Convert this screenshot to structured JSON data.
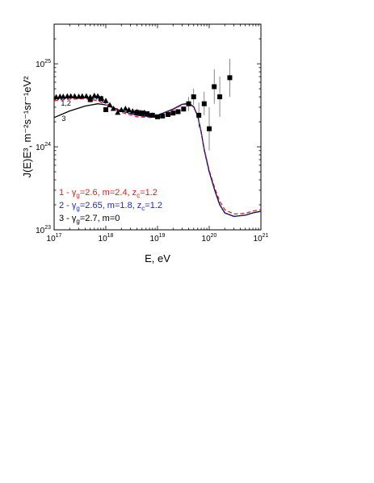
{
  "chart_data": {
    "type": "line",
    "xlabel": "E, eV",
    "ylabel": "J(E)E³, m⁻²s⁻¹sr⁻¹eV²",
    "xscale": "log",
    "yscale": "log",
    "xlim": [
      1e+17,
      1e+21
    ],
    "ylim": [
      1e+23,
      3e+25
    ],
    "x_tick_labels": [
      {
        "base": "10",
        "exp": "17",
        "value": 1e+17
      },
      {
        "base": "10",
        "exp": "18",
        "value": 1e+18
      },
      {
        "base": "10",
        "exp": "19",
        "value": 1e+19
      },
      {
        "base": "10",
        "exp": "20",
        "value": 1e+20
      },
      {
        "base": "10",
        "exp": "21",
        "value": 1e+21
      }
    ],
    "y_tick_labels": [
      {
        "base": "10",
        "exp": "23",
        "value": 1e+23
      },
      {
        "base": "10",
        "exp": "24",
        "value": 1e+24
      },
      {
        "base": "10",
        "exp": "25",
        "value": 1e+25
      }
    ],
    "grid": false,
    "legend_placement": "lower-left",
    "series": [
      {
        "name": "1 - γg=2.6, m=2.4, zc=1.2",
        "label_main": "1 - γ",
        "label_sub": "g",
        "label_rest": "=2.6, m=2.4, z",
        "label_sub2": "c",
        "label_end": "=1.2",
        "color": "#e0201b",
        "dash": "5,3",
        "x": [
          1e+17,
          2e+17,
          4e+17,
          7e+17,
          1e+18,
          2e+18,
          4e+18,
          8e+18,
          1e+19,
          2e+19,
          3e+19,
          4e+19,
          5e+19,
          6e+19,
          7e+19,
          8e+19,
          1e+20,
          1.3e+20,
          1.6e+20,
          2e+20,
          3e+20,
          5e+20,
          7e+20,
          1e+21
        ],
        "y": [
          3.6e+24,
          3.75e+24,
          3.8e+24,
          3.6e+24,
          3.2e+24,
          2.6e+24,
          2.3e+24,
          2.25e+24,
          2.35e+24,
          2.8e+24,
          3.2e+24,
          3.3e+24,
          3e+24,
          2.3e+24,
          1.5e+24,
          9.5e+23,
          5.2e+23,
          3.1e+23,
          2.2e+23,
          1.75e+23,
          1.55e+23,
          1.58e+23,
          1.68e+23,
          1.75e+23
        ]
      },
      {
        "name": "2 - γg=2.65, m=1.8, zc=1.2",
        "label_main": "2 - γ",
        "label_sub": "g",
        "label_rest": "=2.65, m=1.8, z",
        "label_sub2": "c",
        "label_end": "=1.2",
        "color": "#1f1fd6",
        "dash": "2,2",
        "x": [
          1e+17,
          2e+17,
          4e+17,
          7e+17,
          1e+18,
          2e+18,
          4e+18,
          8e+18,
          1e+19,
          2e+19,
          3e+19,
          4e+19,
          5e+19,
          6e+19,
          7e+19,
          8e+19,
          1e+20,
          1.3e+20,
          1.6e+20,
          2e+20,
          3e+20,
          5e+20,
          7e+20,
          1e+21
        ],
        "y": [
          3.7e+24,
          3.85e+24,
          3.95e+24,
          3.75e+24,
          3.35e+24,
          2.7e+24,
          2.4e+24,
          2.3e+24,
          2.4e+24,
          2.85e+24,
          3.25e+24,
          3.35e+24,
          3.05e+24,
          2.35e+24,
          1.5e+24,
          9.2e+23,
          5e+23,
          2.9e+23,
          2e+23,
          1.6e+23,
          1.45e+23,
          1.5e+23,
          1.6e+23,
          1.67e+23
        ]
      },
      {
        "name": "3 - γg=2.7, m=0",
        "label_main": "3 - γ",
        "label_sub": "g",
        "label_rest": "=2.7, m=0",
        "label_sub2": "",
        "label_end": "",
        "color": "#000000",
        "dash": "",
        "x": [
          1e+17,
          2e+17,
          4e+17,
          7e+17,
          1e+18,
          2e+18,
          4e+18,
          8e+18,
          1e+19,
          2e+19,
          3e+19,
          4e+19,
          5e+19,
          6e+19,
          7e+19,
          8e+19,
          1e+20,
          1.3e+20,
          1.6e+20,
          2e+20,
          3e+20,
          5e+20,
          7e+20,
          1e+21
        ],
        "y": [
          2.25e+24,
          2.7e+24,
          3.1e+24,
          3.3e+24,
          3.2e+24,
          2.7e+24,
          2.4e+24,
          2.3e+24,
          2.4e+24,
          2.85e+24,
          3.25e+24,
          3.35e+24,
          3.05e+24,
          2.35e+24,
          1.5e+24,
          9.2e+23,
          5e+23,
          2.9e+23,
          2e+23,
          1.6e+23,
          1.45e+23,
          1.5e+23,
          1.6e+23,
          1.67e+23
        ]
      }
    ],
    "triangle_data": {
      "x": [
        1.1e+17,
        1.3e+17,
        1.5e+17,
        1.8e+17,
        2.1e+17,
        2.5e+17,
        3e+17,
        3.5e+17,
        4.2e+17,
        5e+17,
        6e+17,
        7e+17,
        8.3e+17,
        1e+18,
        1.2e+18,
        1.4e+18,
        1.7e+18,
        2e+18,
        2.4e+18,
        2.8e+18,
        3.3e+18,
        4e+18,
        4.7e+18,
        5.6e+18,
        6.7e+18,
        8e+18
      ],
      "y": [
        4e+24,
        4.05e+24,
        4.05e+24,
        4.1e+24,
        4.1e+24,
        4.1e+24,
        4.05e+24,
        4.1e+24,
        4.1e+24,
        4e+24,
        4.15e+24,
        4.1e+24,
        3.85e+24,
        3.6e+24,
        3.2e+24,
        2.9e+24,
        2.6e+24,
        2.8e+24,
        2.9e+24,
        2.8e+24,
        2.7e+24,
        2.65e+24,
        2.6e+24,
        2.6e+24,
        2.5e+24,
        2.4e+24
      ]
    },
    "square_data": {
      "x": [
        5e+17,
        8e+17,
        1e+18,
        4e+18,
        5e+18,
        6.3e+18,
        8e+18,
        1e+19,
        1.25e+19,
        1.6e+19,
        2e+19,
        2.5e+19,
        3.2e+19,
        4e+19,
        5e+19,
        6.3e+19,
        8e+19,
        1e+20,
        1.25e+20,
        1.6e+20,
        2.5e+20
      ],
      "y": [
        3.7e+24,
        3.8e+24,
        2.8e+24,
        2.6e+24,
        2.55e+24,
        2.5e+24,
        2.4e+24,
        2.3e+24,
        2.35e+24,
        2.45e+24,
        2.55e+24,
        2.65e+24,
        2.85e+24,
        3.3e+24,
        4e+24,
        2.4e+24,
        3.3e+24,
        1.65e+24,
        5.3e+24,
        4e+24,
        6.8e+24
      ],
      "err_low": [
        null,
        null,
        null,
        null,
        null,
        null,
        null,
        null,
        null,
        null,
        null,
        null,
        null,
        2.7e+24,
        3.2e+24,
        1.7e+24,
        2.4e+24,
        9e+23,
        3.3e+24,
        2.3e+24,
        4e+24
      ],
      "err_high": [
        null,
        null,
        null,
        null,
        null,
        null,
        null,
        null,
        null,
        null,
        null,
        null,
        null,
        4e+24,
        5e+24,
        3.4e+24,
        4.6e+24,
        3e+24,
        8.6e+24,
        7e+24,
        1.15e+25
      ]
    },
    "curve_labels": [
      {
        "text": "1,2",
        "x": 1.35e+17,
        "y": 3.15e+24
      },
      {
        "text": "3",
        "x": 1.4e+17,
        "y": 2.05e+24
      }
    ]
  }
}
